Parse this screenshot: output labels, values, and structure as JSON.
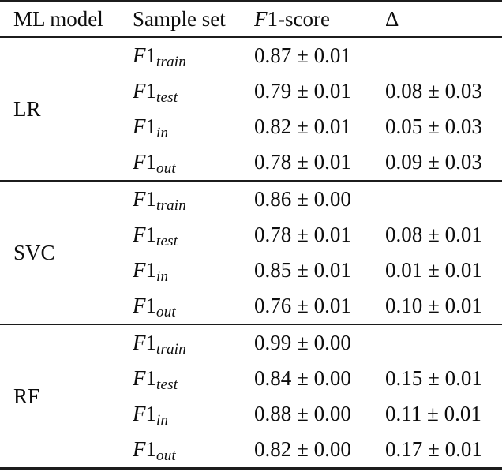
{
  "table": {
    "headers": {
      "model": "ML model",
      "sample_set": "Sample set",
      "f1_italic": "F",
      "f1_rest": "1-score",
      "delta": "Δ"
    },
    "f1_prefix": {
      "italic": "F",
      "upright": "1"
    },
    "groups": [
      {
        "model": "LR",
        "rows": [
          {
            "subscript": "train",
            "f1": "0.87 ± 0.01",
            "delta": ""
          },
          {
            "subscript": "test",
            "f1": "0.79 ± 0.01",
            "delta": "0.08 ± 0.03"
          },
          {
            "subscript": "in",
            "f1": "0.82 ± 0.01",
            "delta": "0.05 ± 0.03"
          },
          {
            "subscript": "out",
            "f1": "0.78 ± 0.01",
            "delta": "0.09 ± 0.03"
          }
        ]
      },
      {
        "model": "SVC",
        "rows": [
          {
            "subscript": "train",
            "f1": "0.86 ± 0.00",
            "delta": ""
          },
          {
            "subscript": "test",
            "f1": "0.78 ± 0.01",
            "delta": "0.08 ± 0.01"
          },
          {
            "subscript": "in",
            "f1": "0.85 ± 0.01",
            "delta": "0.01 ± 0.01"
          },
          {
            "subscript": "out",
            "f1": "0.76 ± 0.01",
            "delta": "0.10 ± 0.01"
          }
        ]
      },
      {
        "model": "RF",
        "rows": [
          {
            "subscript": "train",
            "f1": "0.99 ± 0.00",
            "delta": ""
          },
          {
            "subscript": "test",
            "f1": "0.84 ± 0.00",
            "delta": "0.15 ± 0.01"
          },
          {
            "subscript": "in",
            "f1": "0.88 ± 0.00",
            "delta": "0.11 ± 0.01"
          },
          {
            "subscript": "out",
            "f1": "0.82 ± 0.00",
            "delta": "0.17 ± 0.01"
          }
        ]
      }
    ]
  }
}
